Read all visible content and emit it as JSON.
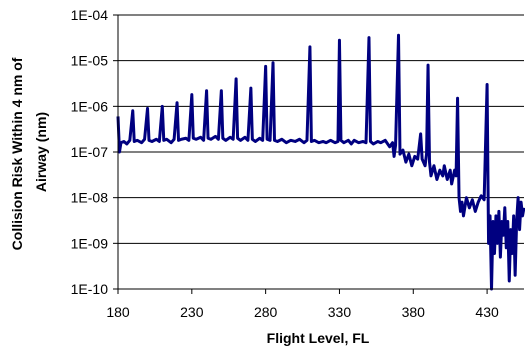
{
  "chart_data": {
    "type": "line",
    "title": "",
    "xlabel": "Flight Level, FL",
    "ylabel_lines": [
      "Collision Risk Within 4 nm of",
      "Airway (nm)"
    ],
    "y_scale": "log",
    "xlim": [
      180,
      455
    ],
    "ylim": [
      1e-10,
      0.0001
    ],
    "x_ticks": [
      180,
      230,
      280,
      330,
      380,
      430
    ],
    "x_tick_labels": [
      "180",
      "230",
      "280",
      "330",
      "380",
      "430"
    ],
    "y_ticks": [
      1e-10,
      1e-09,
      1e-08,
      1e-07,
      1e-06,
      1e-05,
      0.0001
    ],
    "y_tick_labels": [
      "1E-10",
      "1E-09",
      "1E-08",
      "1E-07",
      "1E-06",
      "1E-05",
      "1E-04"
    ],
    "grid": {
      "horizontal": true,
      "vertical": false
    },
    "legend": "none",
    "series": [
      {
        "color": "#000080",
        "points": [
          [
            180,
            6e-07
          ],
          [
            181,
            1e-07
          ],
          [
            182,
            1.6e-07
          ],
          [
            184,
            1.7e-07
          ],
          [
            186,
            1.5e-07
          ],
          [
            188,
            1.8e-07
          ],
          [
            190,
            8e-07
          ],
          [
            191,
            1.7e-07
          ],
          [
            193,
            1.8e-07
          ],
          [
            196,
            1.6e-07
          ],
          [
            198,
            1.9e-07
          ],
          [
            200,
            9e-07
          ],
          [
            201,
            1.8e-07
          ],
          [
            203,
            1.7e-07
          ],
          [
            206,
            1.9e-07
          ],
          [
            208,
            1.7e-07
          ],
          [
            210,
            1e-06
          ],
          [
            211,
            1.8e-07
          ],
          [
            213,
            1.9e-07
          ],
          [
            216,
            1.6e-07
          ],
          [
            218,
            1.9e-07
          ],
          [
            220,
            1.2e-06
          ],
          [
            221,
            1.8e-07
          ],
          [
            223,
            1.9e-07
          ],
          [
            226,
            2e-07
          ],
          [
            228,
            1.8e-07
          ],
          [
            230,
            1.8e-06
          ],
          [
            231,
            2e-07
          ],
          [
            233,
            1.9e-07
          ],
          [
            236,
            2.1e-07
          ],
          [
            238,
            1.8e-07
          ],
          [
            240,
            2.2e-06
          ],
          [
            241,
            2e-07
          ],
          [
            243,
            1.9e-07
          ],
          [
            246,
            2.2e-07
          ],
          [
            248,
            1.9e-07
          ],
          [
            250,
            2.2e-06
          ],
          [
            251,
            2e-07
          ],
          [
            253,
            1.8e-07
          ],
          [
            256,
            2.1e-07
          ],
          [
            258,
            1.9e-07
          ],
          [
            260,
            4e-06
          ],
          [
            261,
            2e-07
          ],
          [
            263,
            1.8e-07
          ],
          [
            266,
            2.1e-07
          ],
          [
            268,
            1.8e-07
          ],
          [
            270,
            2.5e-06
          ],
          [
            271,
            1.9e-07
          ],
          [
            273,
            1.7e-07
          ],
          [
            276,
            2e-07
          ],
          [
            278,
            1.8e-07
          ],
          [
            280,
            7.5e-06
          ],
          [
            281,
            1.9e-07
          ],
          [
            283,
            1.8e-07
          ],
          [
            285,
            9e-06
          ],
          [
            286,
            1.8e-07
          ],
          [
            288,
            1.7e-07
          ],
          [
            291,
            1.9e-07
          ],
          [
            294,
            1.6e-07
          ],
          [
            297,
            1.8e-07
          ],
          [
            300,
            1.7e-07
          ],
          [
            303,
            1.9e-07
          ],
          [
            306,
            1.6e-07
          ],
          [
            308,
            1.8e-07
          ],
          [
            310,
            2e-05
          ],
          [
            311,
            1.7e-07
          ],
          [
            313,
            1.8e-07
          ],
          [
            316,
            1.6e-07
          ],
          [
            319,
            1.7e-07
          ],
          [
            321,
            1.6e-07
          ],
          [
            324,
            1.8e-07
          ],
          [
            327,
            1.6e-07
          ],
          [
            329,
            1.7e-07
          ],
          [
            330,
            2.8e-05
          ],
          [
            331,
            1.8e-07
          ],
          [
            333,
            1.6e-07
          ],
          [
            336,
            1.8e-07
          ],
          [
            338,
            1.5e-07
          ],
          [
            340,
            1.8e-07
          ],
          [
            343,
            1.6e-07
          ],
          [
            346,
            1.7e-07
          ],
          [
            348,
            1.6e-07
          ],
          [
            350,
            3.2e-05
          ],
          [
            351,
            1.7e-07
          ],
          [
            353,
            1.5e-07
          ],
          [
            356,
            1.7e-07
          ],
          [
            358,
            1.6e-07
          ],
          [
            361,
            1.8e-07
          ],
          [
            364,
            1.3e-07
          ],
          [
            366,
            1.6e-07
          ],
          [
            367,
            8e-08
          ],
          [
            368,
            1.4e-07
          ],
          [
            370,
            3.6e-05
          ],
          [
            371,
            9e-08
          ],
          [
            373,
            1.1e-07
          ],
          [
            375,
            6e-08
          ],
          [
            377,
            9e-08
          ],
          [
            379,
            5e-08
          ],
          [
            381,
            8e-08
          ],
          [
            383,
            7e-08
          ],
          [
            385,
            2.5e-07
          ],
          [
            386,
            7e-08
          ],
          [
            388,
            5e-08
          ],
          [
            389,
            9e-08
          ],
          [
            390,
            8e-06
          ],
          [
            391,
            6e-08
          ],
          [
            392,
            3e-08
          ],
          [
            394,
            5e-08
          ],
          [
            396,
            2.5e-08
          ],
          [
            398,
            4e-08
          ],
          [
            400,
            3e-08
          ],
          [
            401,
            5e-08
          ],
          [
            403,
            2.5e-08
          ],
          [
            405,
            4e-08
          ],
          [
            406,
            2e-08
          ],
          [
            408,
            4e-08
          ],
          [
            409,
            3e-08
          ],
          [
            410,
            1.5e-06
          ],
          [
            411,
            1e-08
          ],
          [
            412,
            5e-09
          ],
          [
            413,
            8e-09
          ],
          [
            414,
            4e-09
          ],
          [
            416,
            1e-08
          ],
          [
            418,
            6e-09
          ],
          [
            420,
            9e-09
          ],
          [
            422,
            5e-09
          ],
          [
            424,
            8e-09
          ],
          [
            426,
            1.1e-08
          ],
          [
            428,
            9e-09
          ],
          [
            430,
            3e-06
          ],
          [
            431,
            1e-09
          ],
          [
            432,
            4e-09
          ],
          [
            433,
            1e-10
          ],
          [
            434,
            3e-09
          ],
          [
            435,
            6e-10
          ],
          [
            436,
            4e-09
          ],
          [
            437,
            1e-09
          ],
          [
            438,
            5e-09
          ],
          [
            439,
            5e-10
          ],
          [
            440,
            3e-09
          ],
          [
            441,
            1.5e-09
          ],
          [
            442,
            6e-09
          ],
          [
            443,
            8e-10
          ],
          [
            444,
            3e-09
          ],
          [
            445,
            1.5e-10
          ],
          [
            446,
            2e-09
          ],
          [
            447,
            6e-10
          ],
          [
            448,
            4e-09
          ],
          [
            449,
            2e-10
          ],
          [
            450,
            3e-09
          ],
          [
            451,
            1e-08
          ],
          [
            452,
            2e-09
          ],
          [
            453,
            8e-09
          ],
          [
            454,
            4e-09
          ],
          [
            455,
            6e-09
          ]
        ]
      }
    ]
  }
}
